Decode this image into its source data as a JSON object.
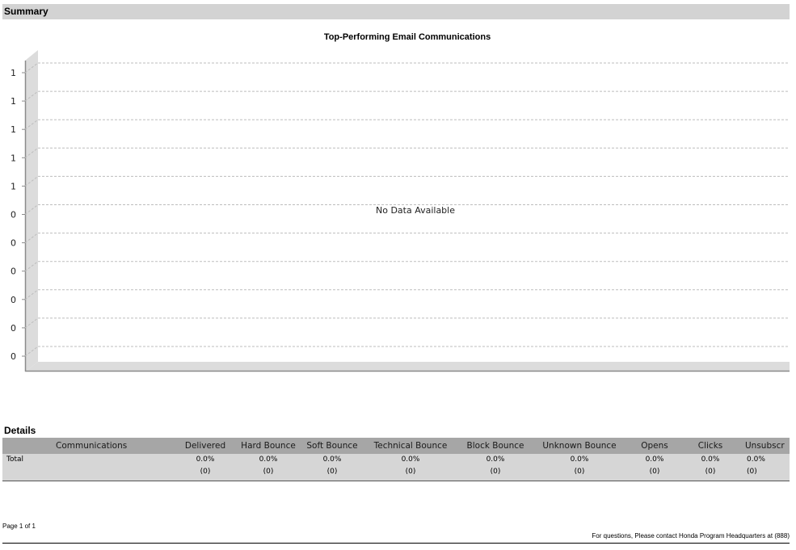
{
  "summary_label": "Summary",
  "details_label": "Details",
  "chart_data": {
    "type": "bar",
    "title": "Top-Performing Email Communications",
    "no_data_text": "No Data Available",
    "y_tick_labels": [
      "1",
      "1",
      "1",
      "1",
      "1",
      "0",
      "0",
      "0",
      "0",
      "0",
      "0"
    ],
    "categories": [],
    "values": [],
    "grid": true
  },
  "details": {
    "columns": [
      "Communications",
      "Delivered",
      "Hard Bounce",
      "Soft Bounce",
      "Technical Bounce",
      "Block Bounce",
      "Unknown Bounce",
      "Opens",
      "Clicks",
      "Unsubscr"
    ],
    "rows": [
      {
        "label": "Total",
        "cells": [
          {
            "pct": "0.0%",
            "count": "(0)"
          },
          {
            "pct": "0.0%",
            "count": "(0)"
          },
          {
            "pct": "0.0%",
            "count": "(0)"
          },
          {
            "pct": "0.0%",
            "count": "(0)"
          },
          {
            "pct": "0.0%",
            "count": "(0)"
          },
          {
            "pct": "0.0%",
            "count": "(0)"
          },
          {
            "pct": "0.0%",
            "count": "(0)"
          },
          {
            "pct": "0.0%",
            "count": "(0)"
          },
          {
            "pct": "0.0%",
            "count": "(0)"
          }
        ]
      }
    ]
  },
  "footer": {
    "page_text": "Page 1 of 1",
    "contact_text": "For questions, Please contact Honda Program Headquarters at (888)"
  }
}
